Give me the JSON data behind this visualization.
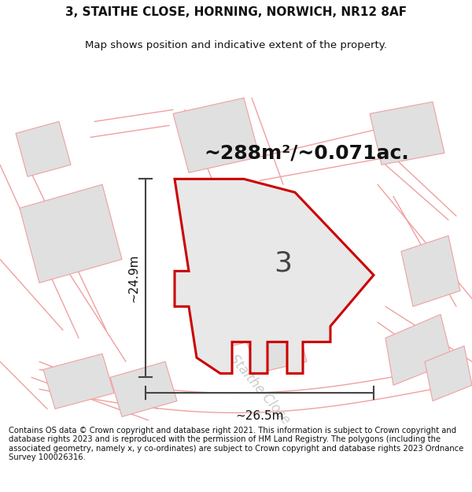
{
  "title": "3, STAITHE CLOSE, HORNING, NORWICH, NR12 8AF",
  "subtitle": "Map shows position and indicative extent of the property.",
  "area_text": "~288m²/~0.071ac.",
  "label_number": "3",
  "dim_height": "~24.9m",
  "dim_width": "~26.5m",
  "road_label": "Staithe Close",
  "footer": "Contains OS data © Crown copyright and database right 2021. This information is subject to Crown copyright and database rights 2023 and is reproduced with the permission of HM Land Registry. The polygons (including the associated geometry, namely x, y co-ordinates) are subject to Crown copyright and database rights 2023 Ordnance Survey 100026316.",
  "bg_color": "#ffffff",
  "map_bg": "#ffffff",
  "parcel_color_red": "#cc0000",
  "parcel_fill": "#e8e8e8",
  "road_lines_color": "#f0a0a0",
  "bld_fill": "#e0e0e0",
  "dim_line_color": "#444444",
  "title_fontsize": 11,
  "subtitle_fontsize": 9.5,
  "area_fontsize": 18,
  "label_fontsize": 26,
  "dim_fontsize": 11,
  "footer_fontsize": 7.2,
  "road_label_fontsize": 12
}
